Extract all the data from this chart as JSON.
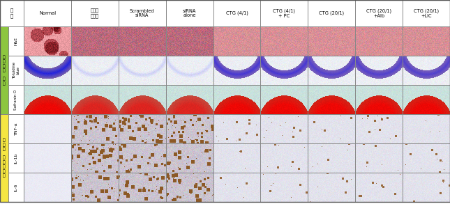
{
  "col_headers": [
    "그\n룹",
    "Normal",
    "관절염\n유도군",
    "Scrambled\nsiRNA",
    "siRNA\nalone",
    "CTG (4/1)",
    "CTG (4/1)\n+ PC",
    "CTG (20/1)",
    "CTG (20/1)\n+Alb",
    "CTG (20/1)\n+LIC"
  ],
  "row_headers_group1": [
    "H&E",
    "Toluidine\nblue",
    "Safranin O"
  ],
  "row_headers_group2": [
    "TNF-α",
    "IL-1b",
    "IL-6"
  ],
  "group1_label": "염\n증\n정\n도\n\n염\n색",
  "group1_color": "#8dc63f",
  "group2_label": "염\n증\n성\n\n사\n이\n토\n카\n인",
  "group2_color": "#f5e642",
  "border_color": "#999999",
  "header_bg": "#ffffff",
  "n_data_cols": 9,
  "n_rows": 6
}
